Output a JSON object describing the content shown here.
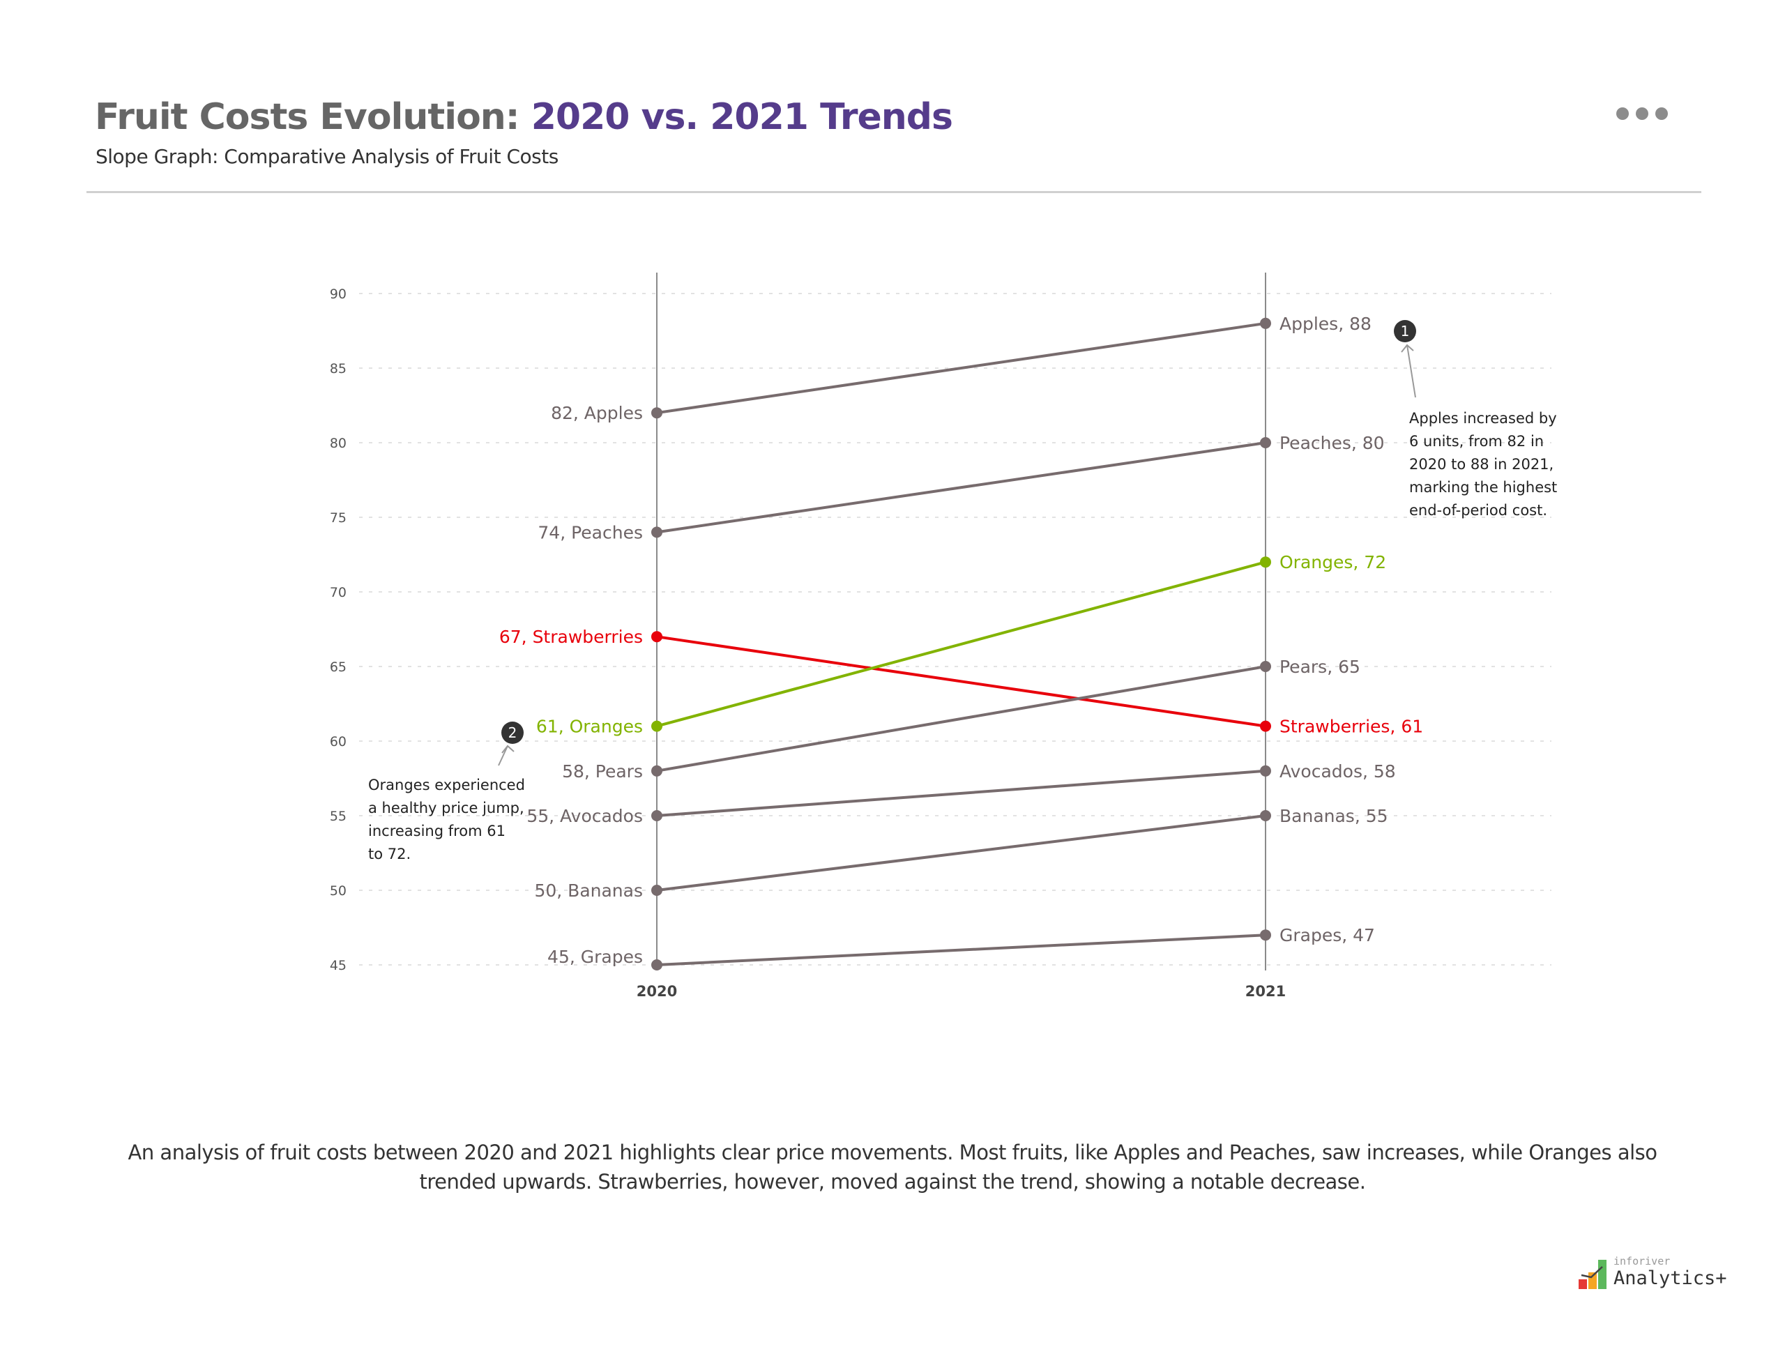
{
  "header": {
    "title_part1": "Fruit Costs Evolution: ",
    "title_part2": "2020 vs. 2021 Trends",
    "subtitle": "Slope Graph: Comparative Analysis of Fruit Costs",
    "more_icon": "ellipsis-icon"
  },
  "chart_data": {
    "type": "slope",
    "categories": [
      "2020",
      "2021"
    ],
    "ylim": [
      45,
      90
    ],
    "yticks": [
      90,
      85,
      80,
      75,
      70,
      65,
      60,
      55,
      50,
      45
    ],
    "grid": true,
    "series": [
      {
        "name": "Apples",
        "values": [
          82,
          88
        ],
        "color": "#776b6d"
      },
      {
        "name": "Peaches",
        "values": [
          74,
          80
        ],
        "color": "#776b6d"
      },
      {
        "name": "Strawberries",
        "values": [
          67,
          61
        ],
        "color": "#e8000b"
      },
      {
        "name": "Oranges",
        "values": [
          61,
          72
        ],
        "color": "#82b300"
      },
      {
        "name": "Pears",
        "values": [
          58,
          65
        ],
        "color": "#776b6d"
      },
      {
        "name": "Avocados",
        "values": [
          55,
          58
        ],
        "color": "#776b6d"
      },
      {
        "name": "Bananas",
        "values": [
          50,
          55
        ],
        "color": "#776b6d"
      },
      {
        "name": "Grapes",
        "values": [
          45,
          47
        ],
        "color": "#776b6d"
      }
    ],
    "annotations": [
      {
        "number": "1",
        "target": "Apples 2021",
        "lines": [
          "Apples increased by",
          "6 units, from 82 in",
          "2020 to 88 in 2021,",
          "marking the highest",
          "end-of-period cost."
        ]
      },
      {
        "number": "2",
        "target": "Oranges 2020",
        "lines": [
          "Oranges experienced",
          "a healthy price jump,",
          "increasing from 61",
          "to 72."
        ]
      }
    ]
  },
  "summary": "An analysis of fruit costs between 2020 and 2021 highlights clear price movements. Most fruits, like Apples and Peaches, saw increases, while Oranges also trended upwards. Strawberries, however, moved against the trend, showing a notable decrease.",
  "logo": {
    "small": "inforiver",
    "big": "Analytics+"
  }
}
